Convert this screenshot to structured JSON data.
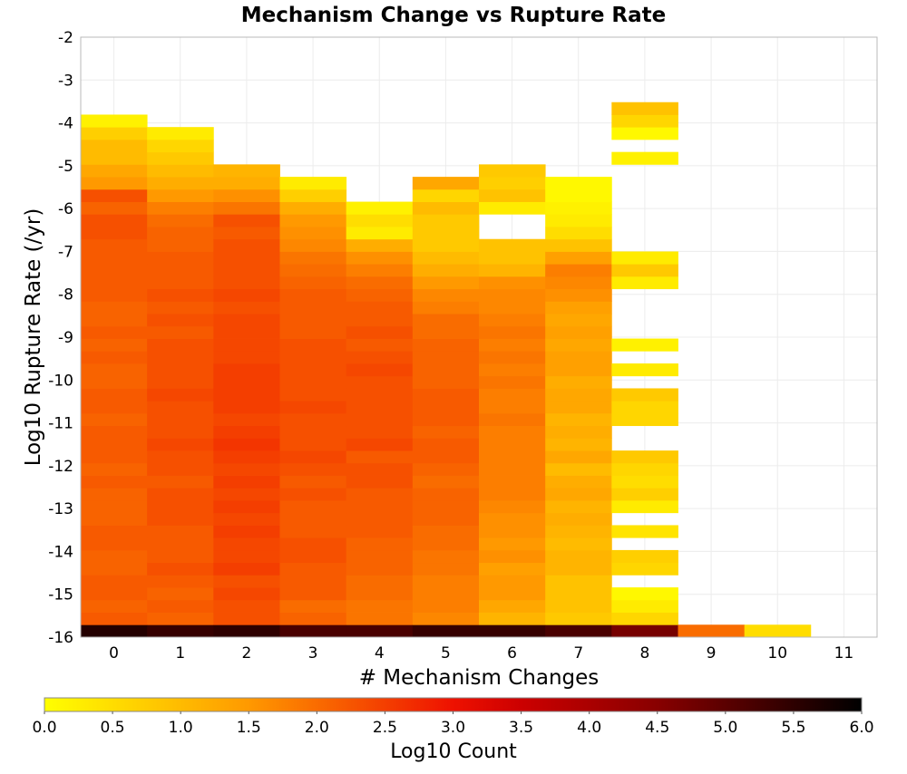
{
  "chart_data": {
    "type": "heatmap",
    "title": "Mechanism Change vs Rupture Rate",
    "xlabel": "# Mechanism Changes",
    "ylabel": "Log10 Rupture Rate (/yr)",
    "x_categories": [
      "0",
      "1",
      "2",
      "3",
      "4",
      "5",
      "6",
      "7",
      "8",
      "9",
      "10",
      "11"
    ],
    "ylim": [
      -16,
      -2
    ],
    "y_ticks": [
      "-2",
      "-3",
      "-4",
      "-5",
      "-6",
      "-7",
      "-8",
      "-9",
      "-10",
      "-11",
      "-12",
      "-13",
      "-14",
      "-15",
      "-16"
    ],
    "y_bin_width": 0.2903,
    "grid": true,
    "colorscale": {
      "label": "Log10 Count",
      "range": [
        0,
        6
      ],
      "ticks": [
        "0.0",
        "0.5",
        "1.0",
        "1.5",
        "2.0",
        "2.5",
        "3.0",
        "3.5",
        "4.0",
        "4.5",
        "5.0",
        "5.5",
        "6.0"
      ],
      "stops": [
        "#ffff00",
        "#ff9900",
        "#ee1100",
        "#cc0000",
        "#880000",
        "#000000"
      ]
    },
    "columns": [
      {
        "x": 0,
        "y_start": -16.0,
        "values": [
          5.6,
          2.2,
          2.1,
          2.2,
          2.2,
          2.1,
          2.1,
          2.2,
          2.2,
          2.1,
          2.1,
          2.1,
          2.2,
          2.1,
          2.2,
          2.2,
          2.2,
          2.1,
          2.2,
          2.2,
          2.1,
          2.1,
          2.2,
          2.1,
          2.2,
          2.1,
          2.1,
          2.2,
          2.2,
          2.2,
          2.2,
          2.2,
          2.3,
          2.3,
          2.1,
          2.3,
          1.5,
          1.3,
          1.0,
          1.0,
          0.7,
          0.2
        ]
      },
      {
        "x": 1,
        "y_start": -16.0,
        "values": [
          5.4,
          2.1,
          2.2,
          2.1,
          2.2,
          2.3,
          2.2,
          2.2,
          2.2,
          2.3,
          2.3,
          2.3,
          2.2,
          2.3,
          2.3,
          2.4,
          2.3,
          2.3,
          2.3,
          2.4,
          2.3,
          2.3,
          2.3,
          2.3,
          2.2,
          2.3,
          2.2,
          2.3,
          2.2,
          2.2,
          2.2,
          2.1,
          2.1,
          2.0,
          1.8,
          1.5,
          1.2,
          1.0,
          0.8,
          0.6,
          0.3
        ]
      },
      {
        "x": 2,
        "y_start": -16.0,
        "values": [
          5.5,
          2.3,
          2.3,
          2.4,
          2.3,
          2.5,
          2.4,
          2.4,
          2.5,
          2.4,
          2.5,
          2.4,
          2.5,
          2.4,
          2.5,
          2.6,
          2.5,
          2.4,
          2.5,
          2.5,
          2.5,
          2.5,
          2.4,
          2.4,
          2.4,
          2.4,
          2.3,
          2.4,
          2.3,
          2.3,
          2.3,
          2.3,
          2.2,
          2.3,
          1.9,
          1.6,
          1.2,
          1.1
        ]
      },
      {
        "x": 3,
        "y_start": -16.0,
        "values": [
          5.2,
          2.1,
          2.0,
          2.2,
          2.2,
          2.2,
          2.3,
          2.3,
          2.2,
          2.2,
          2.2,
          2.3,
          2.2,
          2.3,
          2.4,
          2.3,
          2.3,
          2.3,
          2.4,
          2.3,
          2.3,
          2.3,
          2.3,
          2.3,
          2.2,
          2.2,
          2.2,
          2.2,
          2.1,
          2.0,
          1.9,
          1.7,
          1.6,
          1.5,
          1.2,
          0.7,
          0.3
        ]
      },
      {
        "x": 4,
        "y_start": -16.0,
        "values": [
          5.2,
          1.9,
          1.9,
          2.0,
          2.0,
          2.1,
          2.1,
          2.1,
          2.2,
          2.2,
          2.2,
          2.2,
          2.3,
          2.3,
          2.2,
          2.4,
          2.3,
          2.3,
          2.3,
          2.3,
          2.3,
          2.4,
          2.3,
          2.2,
          2.3,
          2.2,
          2.2,
          2.1,
          2.0,
          1.8,
          1.6,
          1.2,
          0.3,
          0.5,
          0.2
        ]
      },
      {
        "x": 5,
        "y_start": -16.0,
        "values": [
          5.4,
          1.7,
          1.8,
          1.8,
          1.8,
          1.9,
          1.9,
          2.0,
          2.0,
          2.1,
          2.1,
          2.1,
          2.0,
          2.1,
          2.2,
          2.2,
          2.1,
          2.2,
          2.2,
          2.2,
          2.1,
          2.1,
          2.1,
          2.1,
          2.0,
          2.0,
          1.8,
          1.7,
          1.5,
          1.2,
          1.0,
          0.8,
          0.8,
          0.8,
          1.0,
          0.6,
          1.3
        ]
      },
      {
        "x": 6,
        "y_start": -16.0,
        "values": [
          5.4,
          1.1,
          1.3,
          1.5,
          1.5,
          1.4,
          1.6,
          1.5,
          1.6,
          1.6,
          1.7,
          1.8,
          1.8,
          1.8,
          1.8,
          1.8,
          1.8,
          1.9,
          1.8,
          1.8,
          1.9,
          1.8,
          1.9,
          1.8,
          1.9,
          1.8,
          1.7,
          1.7,
          1.6,
          1.1,
          0.9,
          0.9,
          null,
          null,
          0.3,
          0.9,
          0.7,
          0.8
        ]
      },
      {
        "x": 7,
        "y_start": -16.0,
        "values": [
          5.2,
          0.8,
          0.9,
          0.9,
          0.9,
          1.1,
          1.1,
          1.0,
          1.1,
          1.2,
          1.1,
          1.3,
          1.2,
          1.0,
          1.3,
          1.1,
          1.2,
          1.1,
          1.3,
          1.3,
          1.2,
          1.4,
          1.4,
          1.3,
          1.4,
          1.3,
          1.4,
          1.6,
          1.7,
          1.8,
          1.4,
          0.9,
          0.5,
          0.3,
          0.2,
          0.1,
          0.1
        ]
      },
      {
        "x": 8,
        "y_start": -16.0,
        "values": [
          4.7,
          0.6,
          0.3,
          0.1,
          null,
          0.6,
          0.7,
          null,
          0.4,
          null,
          0.3,
          0.7,
          0.5,
          0.6,
          0.8,
          null,
          null,
          0.6,
          0.6,
          0.8,
          null,
          0.3,
          null,
          0.2,
          null,
          null,
          null,
          null,
          0.3,
          0.8,
          0.3,
          null,
          null,
          null,
          null,
          null,
          null,
          null,
          0.2,
          null,
          0.1,
          0.6,
          0.9
        ]
      },
      {
        "x": 9,
        "y_start": -16.0,
        "values": [
          2.0
        ]
      },
      {
        "x": 10,
        "y_start": -16.0,
        "values": [
          0.5
        ]
      },
      {
        "x": 11,
        "y_start": -16.0,
        "values": []
      }
    ]
  }
}
